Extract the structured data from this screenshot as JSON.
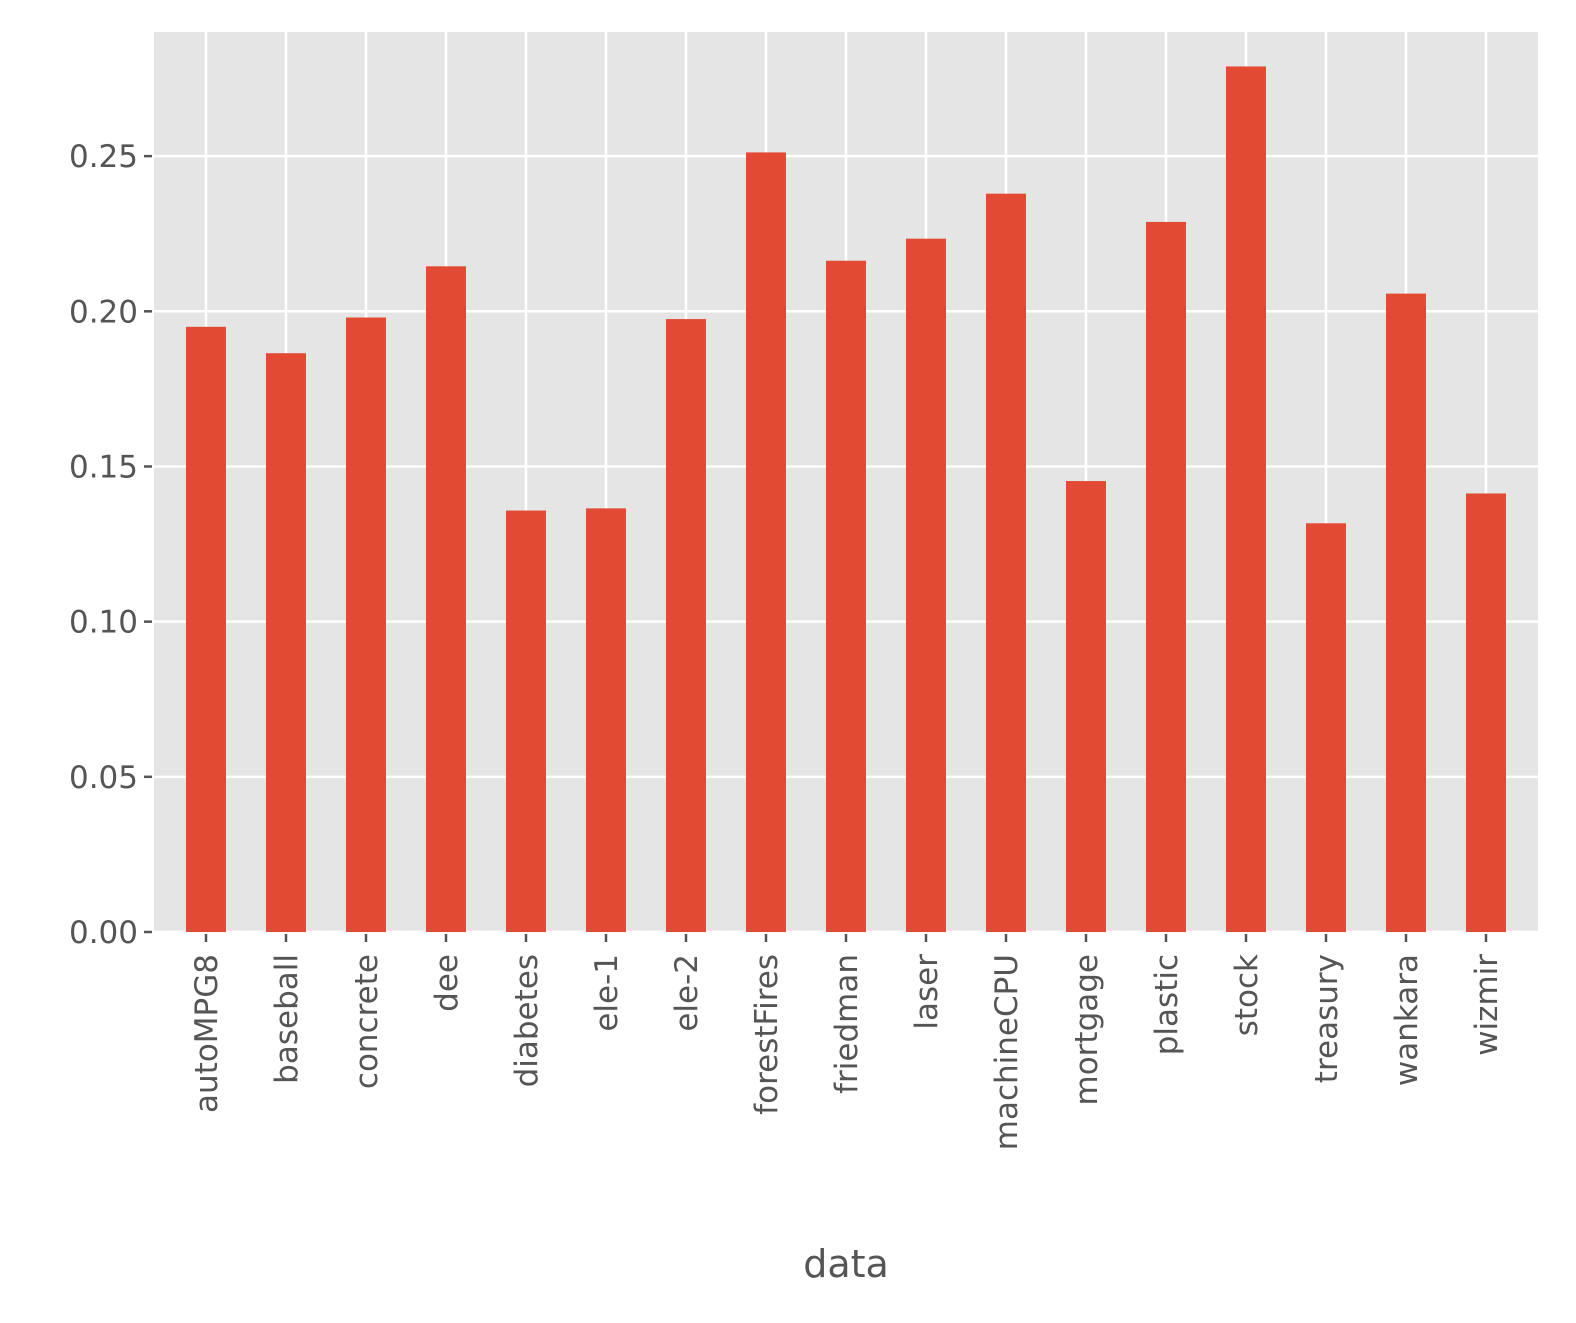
{
  "chart_data": {
    "type": "bar",
    "title": "",
    "xlabel": "data",
    "ylabel": "",
    "categories": [
      "autoMPG8",
      "baseball",
      "concrete",
      "dee",
      "diabetes",
      "ele-1",
      "ele-2",
      "forestFires",
      "friedman",
      "laser",
      "machineCPU",
      "mortgage",
      "plastic",
      "stock",
      "treasury",
      "wankara",
      "wizmir"
    ],
    "values": [
      0.195,
      0.1865,
      0.198,
      0.2145,
      0.1358,
      0.1365,
      0.1975,
      0.2512,
      0.2163,
      0.2234,
      0.2379,
      0.1453,
      0.2288,
      0.2789,
      0.1317,
      0.2057,
      0.1413
    ],
    "ylim": [
      0,
      0.29
    ],
    "yticks": [
      "0.00",
      "0.05",
      "0.10",
      "0.15",
      "0.20",
      "0.25"
    ],
    "grid": true,
    "bar_color": "#E24A33",
    "background_color": "#E5E5E5",
    "grid_color": "#FFFFFF",
    "text_color": "#555555"
  }
}
